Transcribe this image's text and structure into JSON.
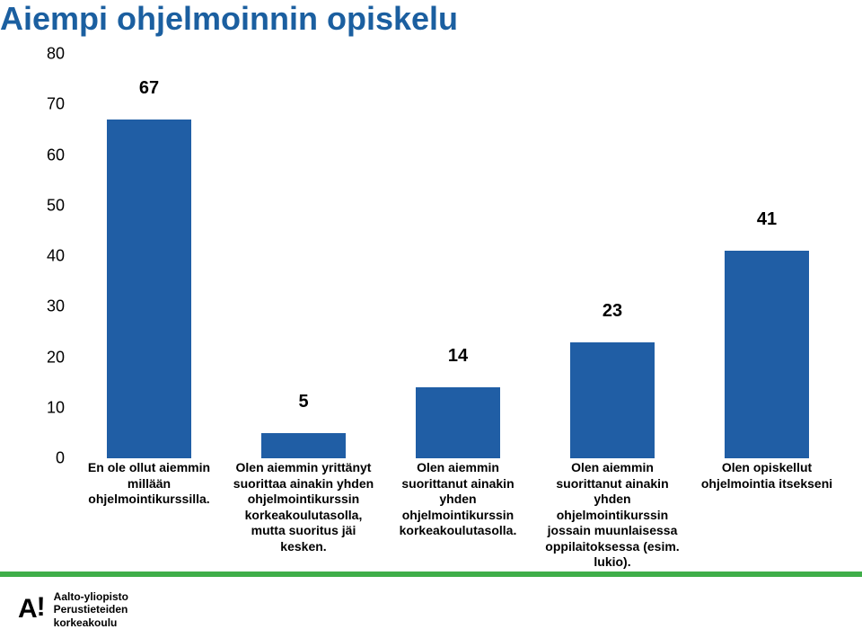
{
  "title": {
    "text": "Aiempi ohjelmoinnin opiskelu",
    "color": "#1b5fa0",
    "fontsize": 36
  },
  "chart": {
    "type": "bar",
    "background_color": "#ffffff",
    "bar_color": "#205ea5",
    "value_label_fontsize": 20,
    "axis_label_fontsize": 18,
    "category_label_fontsize": 14,
    "ylim": [
      0,
      80
    ],
    "ytick_step": 10,
    "yticks": [
      0,
      10,
      20,
      30,
      40,
      50,
      60,
      70,
      80
    ],
    "bar_width_ratio": 0.55,
    "categories": [
      "En ole ollut aiemmin millään ohjelmointikurssilla.",
      "Olen aiemmin yrittänyt suorittaa ainakin yhden ohjelmointikurssin korkeakoulutasolla, mutta suoritus jäi kesken.",
      "Olen aiemmin suorittanut ainakin yhden ohjelmointikurssin korkeakoulutasolla.",
      "Olen aiemmin suorittanut ainakin yhden ohjelmointikurssin jossain muunlaisessa oppilaitoksessa (esim. lukio).",
      "Olen opiskellut ohjelmointia itsekseni"
    ],
    "values": [
      67,
      5,
      14,
      23,
      41
    ]
  },
  "footer": {
    "band_color": "#3fae49",
    "logo_mark": "A!",
    "logo_line1": "Aalto-yliopisto",
    "logo_line2": "Perustieteiden",
    "logo_line3": "korkeakoulu"
  }
}
